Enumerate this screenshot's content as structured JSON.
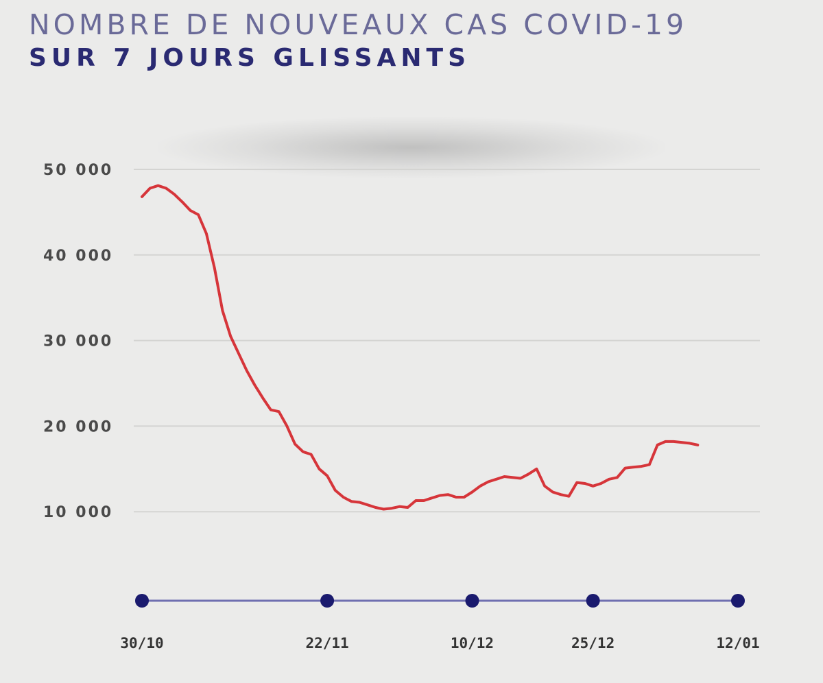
{
  "chart_data": {
    "type": "line",
    "title": "NOMBRE DE NOUVEAUX CAS COVID-19",
    "subtitle": "SUR 7 JOURS GLISSANTS",
    "xlabel": "",
    "ylabel": "",
    "ylim": [
      0,
      50000
    ],
    "y_ticks": [
      {
        "value": 10000,
        "label": "10 000"
      },
      {
        "value": 20000,
        "label": "20 000"
      },
      {
        "value": 30000,
        "label": "30 000"
      },
      {
        "value": 40000,
        "label": "40 000"
      },
      {
        "value": 50000,
        "label": "50 000"
      }
    ],
    "x_range": [
      "2020-10-30",
      "2021-01-12"
    ],
    "x_ticks": [
      {
        "date": "2020-10-30",
        "label": "30/10"
      },
      {
        "date": "2020-11-22",
        "label": "22/11"
      },
      {
        "date": "2020-12-10",
        "label": "10/12"
      },
      {
        "date": "2020-12-25",
        "label": "25/12"
      },
      {
        "date": "2021-01-12",
        "label": "12/01"
      }
    ],
    "grid": true,
    "line_color": "#d6353a",
    "axis_color": "#1a1a6e",
    "series": [
      {
        "values": [
          [
            "2020-10-30",
            46800
          ],
          [
            "2020-10-31",
            47800
          ],
          [
            "2020-11-01",
            48100
          ],
          [
            "2020-11-02",
            47800
          ],
          [
            "2020-11-03",
            47100
          ],
          [
            "2020-11-04",
            46200
          ],
          [
            "2020-11-05",
            45200
          ],
          [
            "2020-11-06",
            44700
          ],
          [
            "2020-11-07",
            42500
          ],
          [
            "2020-11-08",
            38500
          ],
          [
            "2020-11-09",
            33500
          ],
          [
            "2020-11-10",
            30500
          ],
          [
            "2020-11-11",
            28500
          ],
          [
            "2020-11-12",
            26500
          ],
          [
            "2020-11-13",
            24800
          ],
          [
            "2020-11-14",
            23300
          ],
          [
            "2020-11-15",
            21900
          ],
          [
            "2020-11-16",
            21700
          ],
          [
            "2020-11-17",
            20000
          ],
          [
            "2020-11-18",
            17900
          ],
          [
            "2020-11-19",
            17000
          ],
          [
            "2020-11-20",
            16700
          ],
          [
            "2020-11-21",
            15000
          ],
          [
            "2020-11-22",
            14200
          ],
          [
            "2020-11-23",
            12500
          ],
          [
            "2020-11-24",
            11700
          ],
          [
            "2020-11-25",
            11200
          ],
          [
            "2020-11-26",
            11100
          ],
          [
            "2020-11-27",
            10800
          ],
          [
            "2020-11-28",
            10500
          ],
          [
            "2020-11-29",
            10300
          ],
          [
            "2020-11-30",
            10400
          ],
          [
            "2020-12-01",
            10600
          ],
          [
            "2020-12-02",
            10500
          ],
          [
            "2020-12-03",
            11300
          ],
          [
            "2020-12-04",
            11300
          ],
          [
            "2020-12-05",
            11600
          ],
          [
            "2020-12-06",
            11900
          ],
          [
            "2020-12-07",
            12000
          ],
          [
            "2020-12-08",
            11700
          ],
          [
            "2020-12-09",
            11700
          ],
          [
            "2020-12-10",
            12300
          ],
          [
            "2020-12-11",
            13000
          ],
          [
            "2020-12-12",
            13500
          ],
          [
            "2020-12-13",
            13800
          ],
          [
            "2020-12-14",
            14100
          ],
          [
            "2020-12-15",
            14000
          ],
          [
            "2020-12-16",
            13900
          ],
          [
            "2020-12-17",
            14400
          ],
          [
            "2020-12-18",
            15000
          ],
          [
            "2020-12-19",
            13000
          ],
          [
            "2020-12-20",
            12300
          ],
          [
            "2020-12-21",
            12000
          ],
          [
            "2020-12-22",
            11800
          ],
          [
            "2020-12-23",
            13400
          ],
          [
            "2020-12-24",
            13300
          ],
          [
            "2020-12-25",
            13000
          ],
          [
            "2020-12-26",
            13300
          ],
          [
            "2020-12-27",
            13800
          ],
          [
            "2020-12-28",
            14000
          ],
          [
            "2020-12-29",
            15100
          ],
          [
            "2020-12-30",
            15200
          ],
          [
            "2020-12-31",
            15300
          ],
          [
            "2021-01-01",
            15500
          ],
          [
            "2021-01-02",
            17800
          ],
          [
            "2021-01-03",
            18200
          ],
          [
            "2021-01-04",
            18200
          ],
          [
            "2021-01-05",
            18100
          ],
          [
            "2021-01-06",
            18000
          ],
          [
            "2021-01-07",
            17800
          ]
        ]
      }
    ]
  }
}
